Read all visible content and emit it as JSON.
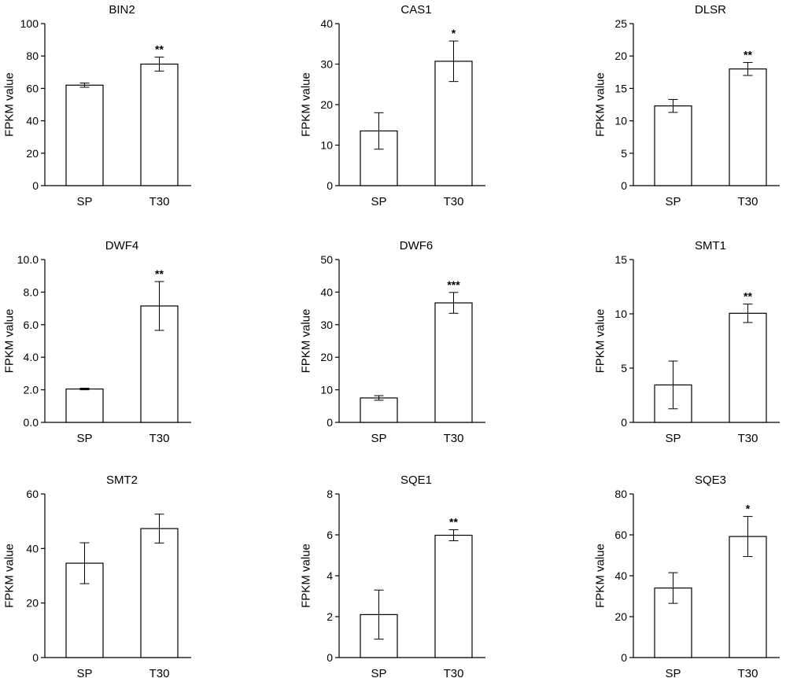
{
  "chart_data": [
    {
      "type": "bar",
      "title": "BIN2",
      "ylabel": "FPKM value",
      "categories": [
        "SP",
        "T30"
      ],
      "values": [
        62,
        75
      ],
      "errors": [
        1.3,
        4.3
      ],
      "significance": [
        "",
        "**"
      ],
      "ylim": [
        0,
        100
      ],
      "ticks": [
        0,
        20,
        40,
        60,
        80,
        100
      ],
      "tick_labels": [
        "0",
        "20",
        "40",
        "60",
        "80",
        "100"
      ]
    },
    {
      "type": "bar",
      "title": "CAS1",
      "ylabel": "FPKM value",
      "categories": [
        "SP",
        "T30"
      ],
      "values": [
        13.5,
        30.7
      ],
      "errors": [
        4.5,
        5
      ],
      "significance": [
        "",
        "*"
      ],
      "ylim": [
        0,
        40
      ],
      "ticks": [
        0,
        10,
        20,
        30,
        40
      ],
      "tick_labels": [
        "0",
        "10",
        "20",
        "30",
        "40"
      ]
    },
    {
      "type": "bar",
      "title": "DLSR",
      "ylabel": "FPKM value",
      "categories": [
        "SP",
        "T30"
      ],
      "values": [
        12.3,
        18
      ],
      "errors": [
        1,
        1
      ],
      "significance": [
        "",
        "**"
      ],
      "ylim": [
        0,
        25
      ],
      "ticks": [
        0,
        5,
        10,
        15,
        20,
        25
      ],
      "tick_labels": [
        "0",
        "5",
        "10",
        "15",
        "20",
        "25"
      ]
    },
    {
      "type": "bar",
      "title": "DWF4",
      "ylabel": "FPKM value",
      "categories": [
        "SP",
        "T30"
      ],
      "values": [
        2.05,
        7.15
      ],
      "errors": [
        0.05,
        1.5
      ],
      "significance": [
        "",
        "**"
      ],
      "ylim": [
        0,
        10
      ],
      "ticks": [
        0,
        2,
        4,
        6,
        8,
        10
      ],
      "tick_labels": [
        "0.0",
        "2.0",
        "4.0",
        "6.0",
        "8.0",
        "10.0"
      ]
    },
    {
      "type": "bar",
      "title": "DWF6",
      "ylabel": "FPKM value",
      "categories": [
        "SP",
        "T30"
      ],
      "values": [
        7.5,
        36.7
      ],
      "errors": [
        0.7,
        3.2
      ],
      "significance": [
        "",
        "***"
      ],
      "ylim": [
        0,
        50
      ],
      "ticks": [
        0,
        10,
        20,
        30,
        40,
        50
      ],
      "tick_labels": [
        "0",
        "10",
        "20",
        "30",
        "40",
        "50"
      ]
    },
    {
      "type": "bar",
      "title": "SMT1",
      "ylabel": "FPKM value",
      "categories": [
        "SP",
        "T30"
      ],
      "values": [
        3.45,
        10.05
      ],
      "errors": [
        2.2,
        0.85
      ],
      "significance": [
        "",
        "**"
      ],
      "ylim": [
        0,
        15
      ],
      "ticks": [
        0,
        5,
        10,
        15
      ],
      "tick_labels": [
        "0",
        "5",
        "10",
        "15"
      ]
    },
    {
      "type": "bar",
      "title": "SMT2",
      "ylabel": "FPKM value",
      "categories": [
        "SP",
        "T30"
      ],
      "values": [
        34.6,
        47.3
      ],
      "errors": [
        7.5,
        5.3
      ],
      "significance": [
        "",
        ""
      ],
      "ylim": [
        0,
        60
      ],
      "ticks": [
        0,
        20,
        40,
        60
      ],
      "tick_labels": [
        "0",
        "20",
        "40",
        "60"
      ]
    },
    {
      "type": "bar",
      "title": "SQE1",
      "ylabel": "FPKM value",
      "categories": [
        "SP",
        "T30"
      ],
      "values": [
        2.1,
        5.98
      ],
      "errors": [
        1.2,
        0.27
      ],
      "significance": [
        "",
        "**"
      ],
      "ylim": [
        0,
        8
      ],
      "ticks": [
        0,
        2,
        4,
        6,
        8
      ],
      "tick_labels": [
        "0",
        "2",
        "4",
        "6",
        "8"
      ]
    },
    {
      "type": "bar",
      "title": "SQE3",
      "ylabel": "FPKM value",
      "categories": [
        "SP",
        "T30"
      ],
      "values": [
        34,
        59.2
      ],
      "errors": [
        7.5,
        9.8
      ],
      "significance": [
        "",
        "*"
      ],
      "ylim": [
        0,
        80
      ],
      "ticks": [
        0,
        20,
        40,
        60,
        80
      ],
      "tick_labels": [
        "0",
        "20",
        "40",
        "60",
        "80"
      ]
    }
  ]
}
